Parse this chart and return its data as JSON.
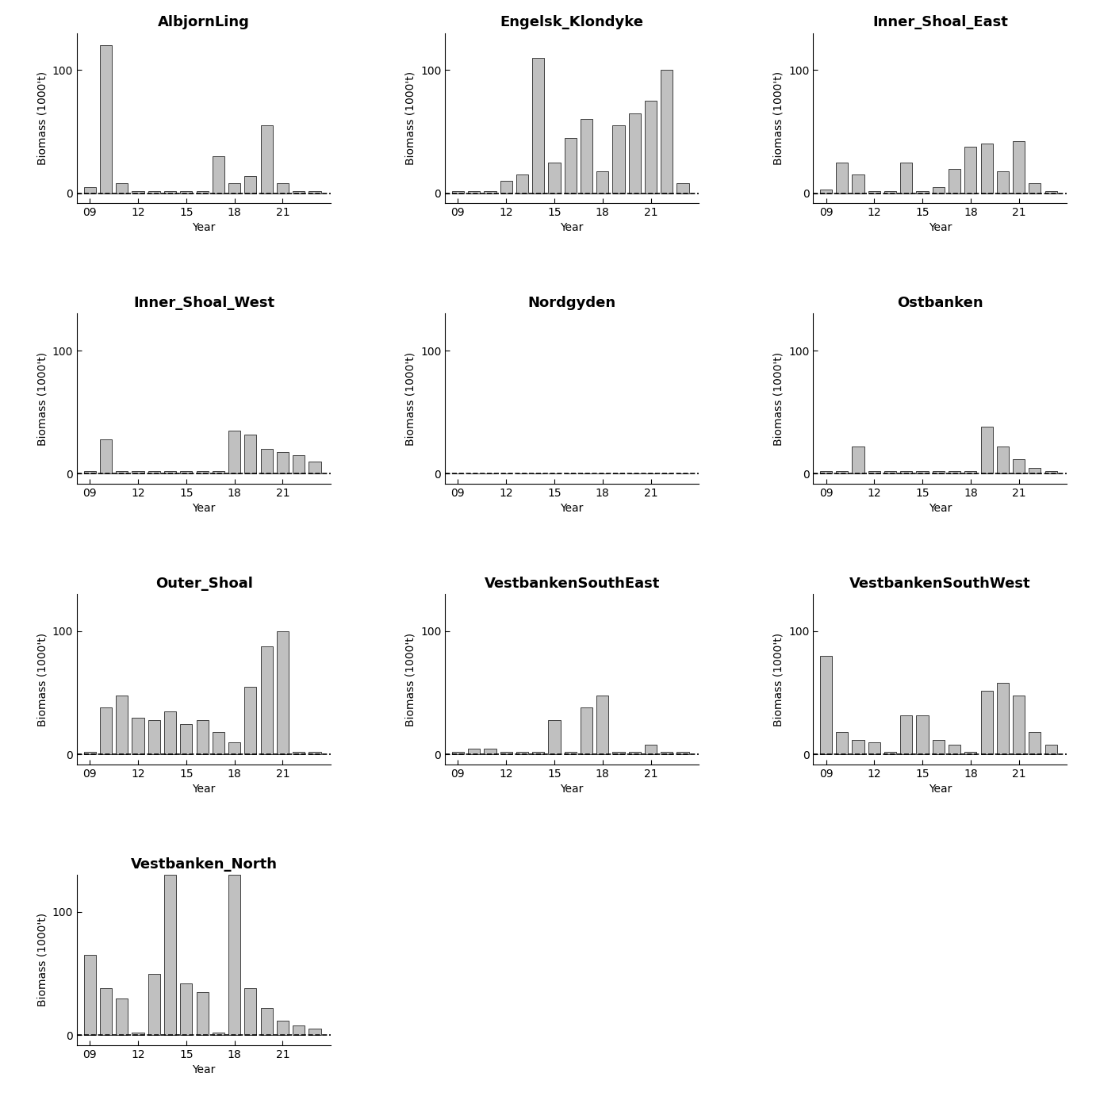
{
  "panels": [
    {
      "title": "AlbjornLing",
      "years": [
        2009,
        2010,
        2011,
        2012,
        2013,
        2014,
        2015,
        2016,
        2017,
        2018,
        2019,
        2020,
        2021,
        2022,
        2023
      ],
      "values": [
        5,
        120,
        8,
        2,
        2,
        2,
        2,
        2,
        30,
        8,
        14,
        55,
        8,
        2,
        2
      ]
    },
    {
      "title": "Engelsk_Klondyke",
      "years": [
        2009,
        2010,
        2011,
        2012,
        2013,
        2014,
        2015,
        2016,
        2017,
        2018,
        2019,
        2020,
        2021,
        2022,
        2023
      ],
      "values": [
        2,
        2,
        2,
        10,
        15,
        110,
        25,
        45,
        60,
        18,
        55,
        65,
        75,
        100,
        8
      ]
    },
    {
      "title": "Inner_Shoal_East",
      "years": [
        2009,
        2010,
        2011,
        2012,
        2013,
        2014,
        2015,
        2016,
        2017,
        2018,
        2019,
        2020,
        2021,
        2022,
        2023
      ],
      "values": [
        3,
        25,
        15,
        2,
        2,
        25,
        2,
        5,
        20,
        38,
        40,
        18,
        42,
        8,
        2
      ]
    },
    {
      "title": "Inner_Shoal_West",
      "years": [
        2009,
        2010,
        2011,
        2012,
        2013,
        2014,
        2015,
        2016,
        2017,
        2018,
        2019,
        2020,
        2021,
        2022,
        2023
      ],
      "values": [
        2,
        28,
        2,
        2,
        2,
        2,
        2,
        2,
        2,
        35,
        32,
        20,
        18,
        15,
        10
      ]
    },
    {
      "title": "Nordgyden",
      "years": [
        2009,
        2010,
        2011,
        2012,
        2013,
        2014,
        2015,
        2016,
        2017,
        2018,
        2019,
        2020,
        2021,
        2022,
        2023
      ],
      "values": [
        0,
        0,
        0,
        0,
        0,
        0,
        0,
        0,
        0,
        0,
        0,
        0,
        0,
        0,
        0
      ]
    },
    {
      "title": "Ostbanken",
      "years": [
        2009,
        2010,
        2011,
        2012,
        2013,
        2014,
        2015,
        2016,
        2017,
        2018,
        2019,
        2020,
        2021,
        2022,
        2023
      ],
      "values": [
        2,
        2,
        22,
        2,
        2,
        2,
        2,
        2,
        2,
        2,
        38,
        22,
        12,
        5,
        2
      ]
    },
    {
      "title": "Outer_Shoal",
      "years": [
        2009,
        2010,
        2011,
        2012,
        2013,
        2014,
        2015,
        2016,
        2017,
        2018,
        2019,
        2020,
        2021,
        2022,
        2023
      ],
      "values": [
        2,
        38,
        48,
        30,
        28,
        35,
        25,
        28,
        18,
        10,
        55,
        88,
        100,
        2,
        2
      ]
    },
    {
      "title": "VestbankenSouthEast",
      "years": [
        2009,
        2010,
        2011,
        2012,
        2013,
        2014,
        2015,
        2016,
        2017,
        2018,
        2019,
        2020,
        2021,
        2022,
        2023
      ],
      "values": [
        2,
        5,
        5,
        2,
        2,
        2,
        28,
        2,
        38,
        48,
        2,
        2,
        8,
        2,
        2
      ]
    },
    {
      "title": "VestbankenSouthWest",
      "years": [
        2009,
        2010,
        2011,
        2012,
        2013,
        2014,
        2015,
        2016,
        2017,
        2018,
        2019,
        2020,
        2021,
        2022,
        2023
      ],
      "values": [
        80,
        18,
        12,
        10,
        2,
        32,
        32,
        12,
        8,
        2,
        52,
        58,
        48,
        18,
        8
      ]
    },
    {
      "title": "Vestbanken_North",
      "years": [
        2009,
        2010,
        2011,
        2012,
        2013,
        2014,
        2015,
        2016,
        2017,
        2018,
        2019,
        2020,
        2021,
        2022,
        2023
      ],
      "values": [
        65,
        38,
        30,
        2,
        50,
        130,
        42,
        35,
        2,
        130,
        38,
        22,
        12,
        8,
        5
      ]
    }
  ],
  "bar_color": "#c0c0c0",
  "bar_edgecolor": "#000000",
  "ylabel": "Biomass (1000't)",
  "xlabel": "Year",
  "xtick_labels": [
    "09",
    "12",
    "15",
    "18",
    "21"
  ],
  "xtick_positions": [
    2009,
    2012,
    2015,
    2018,
    2021
  ],
  "ylim": [
    -8,
    130
  ],
  "ytick_positions": [
    0,
    100
  ],
  "background_color": "#ffffff",
  "title_fontsize": 13,
  "label_fontsize": 10,
  "tick_fontsize": 10,
  "bar_width": 0.75
}
